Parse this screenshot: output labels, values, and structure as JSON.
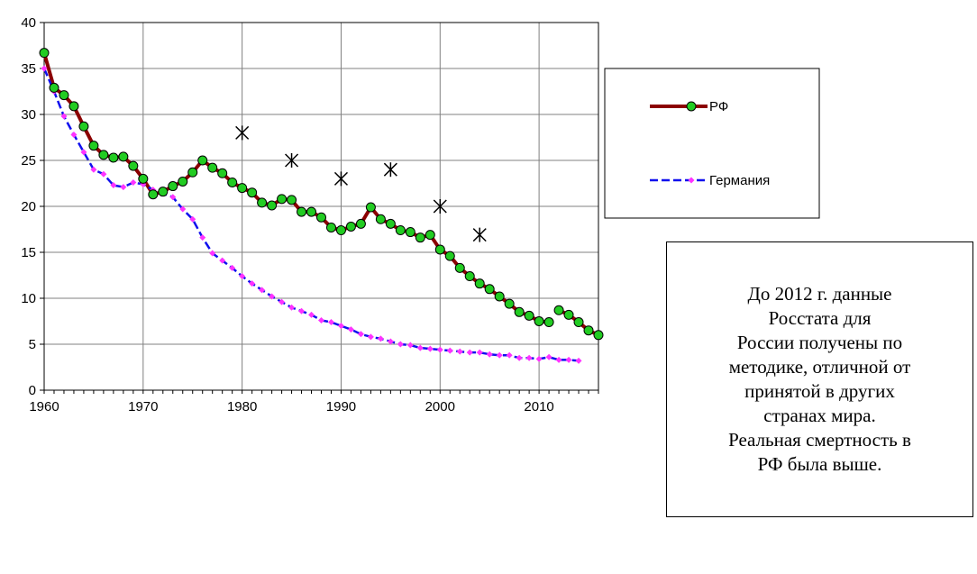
{
  "chart_data": {
    "type": "line",
    "xlim": [
      1960,
      2016
    ],
    "ylim": [
      0,
      40
    ],
    "x_ticks": [
      1960,
      1970,
      1980,
      1990,
      2000,
      2010
    ],
    "y_ticks": [
      0,
      5,
      10,
      15,
      20,
      25,
      30,
      35,
      40
    ],
    "grid": true,
    "legend_position": "right",
    "series": [
      {
        "name": "РФ",
        "color": "#8B0000",
        "marker_color": "#22CC22",
        "points": [
          [
            1960,
            36.7
          ],
          [
            1961,
            32.9
          ],
          [
            1962,
            32.1
          ],
          [
            1963,
            30.9
          ],
          [
            1964,
            28.7
          ],
          [
            1965,
            26.6
          ],
          [
            1966,
            25.6
          ],
          [
            1967,
            25.3
          ],
          [
            1968,
            25.4
          ],
          [
            1969,
            24.4
          ],
          [
            1970,
            23.0
          ],
          [
            1971,
            21.3
          ],
          [
            1972,
            21.6
          ],
          [
            1973,
            22.2
          ],
          [
            1974,
            22.7
          ],
          [
            1975,
            23.7
          ],
          [
            1976,
            25.0
          ],
          [
            1977,
            24.2
          ],
          [
            1978,
            23.6
          ],
          [
            1979,
            22.6
          ],
          [
            1980,
            22.0
          ],
          [
            1981,
            21.5
          ],
          [
            1982,
            20.4
          ],
          [
            1983,
            20.1
          ],
          [
            1984,
            20.8
          ],
          [
            1985,
            20.7
          ],
          [
            1986,
            19.4
          ],
          [
            1987,
            19.4
          ],
          [
            1988,
            18.8
          ],
          [
            1989,
            17.7
          ],
          [
            1990,
            17.4
          ],
          [
            1991,
            17.8
          ],
          [
            1992,
            18.1
          ],
          [
            1993,
            19.9
          ],
          [
            1994,
            18.6
          ],
          [
            1995,
            18.1
          ],
          [
            1996,
            17.4
          ],
          [
            1997,
            17.2
          ],
          [
            1998,
            16.6
          ],
          [
            1999,
            16.9
          ],
          [
            2000,
            15.3
          ],
          [
            2001,
            14.6
          ],
          [
            2002,
            13.3
          ],
          [
            2003,
            12.4
          ],
          [
            2004,
            11.6
          ],
          [
            2005,
            11.0
          ],
          [
            2006,
            10.2
          ],
          [
            2007,
            9.4
          ],
          [
            2008,
            8.5
          ],
          [
            2009,
            8.1
          ],
          [
            2010,
            7.5
          ],
          [
            2011,
            7.4
          ],
          null,
          [
            2012,
            8.7
          ],
          [
            2013,
            8.2
          ],
          [
            2014,
            7.4
          ],
          [
            2015,
            6.5
          ],
          [
            2016,
            6.0
          ]
        ]
      },
      {
        "name": "Германия",
        "color": "#1010EE",
        "marker_color": "#FF33FF",
        "points": [
          [
            1960,
            35.0
          ],
          [
            1961,
            32.5
          ],
          [
            1962,
            29.8
          ],
          [
            1963,
            27.8
          ],
          [
            1964,
            25.9
          ],
          [
            1965,
            24.0
          ],
          [
            1966,
            23.5
          ],
          [
            1967,
            22.3
          ],
          [
            1968,
            22.1
          ],
          [
            1969,
            22.6
          ],
          [
            1970,
            22.4
          ],
          [
            1971,
            21.8
          ],
          [
            1972,
            21.4
          ],
          [
            1973,
            21.0
          ],
          [
            1974,
            19.7
          ],
          [
            1975,
            18.6
          ],
          [
            1976,
            16.6
          ],
          [
            1977,
            14.9
          ],
          [
            1978,
            14.1
          ],
          [
            1979,
            13.3
          ],
          [
            1980,
            12.4
          ],
          [
            1981,
            11.6
          ],
          [
            1982,
            10.9
          ],
          [
            1983,
            10.2
          ],
          [
            1984,
            9.6
          ],
          [
            1985,
            9.0
          ],
          [
            1986,
            8.6
          ],
          [
            1987,
            8.2
          ],
          [
            1988,
            7.6
          ],
          [
            1989,
            7.4
          ],
          [
            1990,
            7.0
          ],
          [
            1991,
            6.6
          ],
          [
            1992,
            6.1
          ],
          [
            1993,
            5.8
          ],
          [
            1994,
            5.6
          ],
          [
            1995,
            5.3
          ],
          [
            1996,
            5.0
          ],
          [
            1997,
            4.9
          ],
          [
            1998,
            4.6
          ],
          [
            1999,
            4.5
          ],
          [
            2000,
            4.4
          ],
          [
            2001,
            4.3
          ],
          [
            2002,
            4.2
          ],
          [
            2003,
            4.1
          ],
          [
            2004,
            4.1
          ],
          [
            2005,
            3.9
          ],
          [
            2006,
            3.8
          ],
          [
            2007,
            3.8
          ],
          [
            2008,
            3.5
          ],
          [
            2009,
            3.5
          ],
          [
            2010,
            3.4
          ],
          [
            2011,
            3.6
          ],
          [
            2012,
            3.3
          ],
          [
            2013,
            3.3
          ],
          [
            2014,
            3.2
          ]
        ]
      }
    ],
    "asterisks": [
      [
        1980,
        28.0
      ],
      [
        1985,
        25.0
      ],
      [
        1990,
        23.0
      ],
      [
        1995,
        24.0
      ],
      [
        2000,
        20.0
      ],
      [
        2004,
        16.9
      ]
    ]
  },
  "note": {
    "lines": [
      "До 2012 г. данные",
      "Росстата для",
      "России получены по",
      "методике, отличной от",
      "принятой в других",
      "странах мира.",
      "Реальная смертность в",
      "РФ была выше."
    ]
  }
}
